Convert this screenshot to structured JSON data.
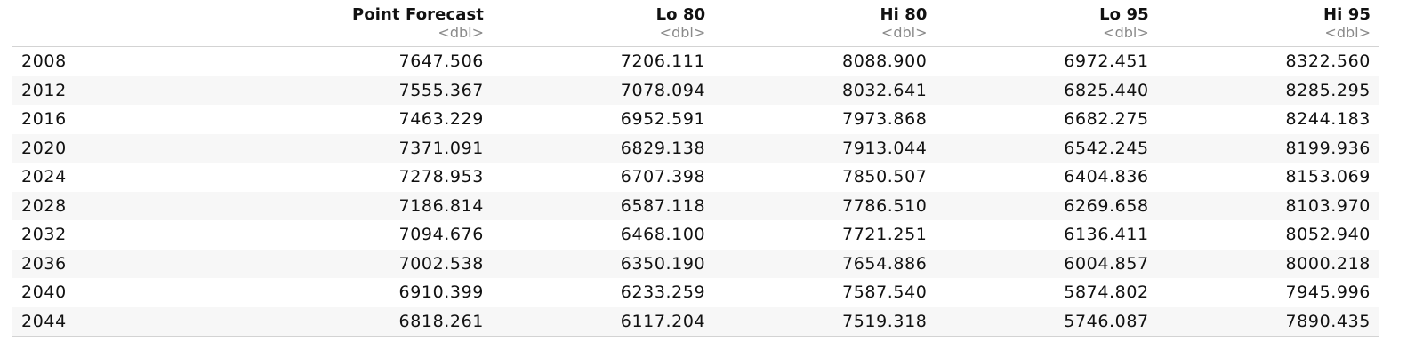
{
  "table": {
    "columns": [
      {
        "name": "",
        "type": ""
      },
      {
        "name": "Point Forecast",
        "type": "<dbl>"
      },
      {
        "name": "Lo 80",
        "type": "<dbl>"
      },
      {
        "name": "Hi 80",
        "type": "<dbl>"
      },
      {
        "name": "Lo 95",
        "type": "<dbl>"
      },
      {
        "name": "Hi 95",
        "type": "<dbl>"
      }
    ],
    "rows": [
      [
        "2008",
        "7647.506",
        "7206.111",
        "8088.900",
        "6972.451",
        "8322.560"
      ],
      [
        "2012",
        "7555.367",
        "7078.094",
        "8032.641",
        "6825.440",
        "8285.295"
      ],
      [
        "2016",
        "7463.229",
        "6952.591",
        "7973.868",
        "6682.275",
        "8244.183"
      ],
      [
        "2020",
        "7371.091",
        "6829.138",
        "7913.044",
        "6542.245",
        "8199.936"
      ],
      [
        "2024",
        "7278.953",
        "6707.398",
        "7850.507",
        "6404.836",
        "8153.069"
      ],
      [
        "2028",
        "7186.814",
        "6587.118",
        "7786.510",
        "6269.658",
        "8103.970"
      ],
      [
        "2032",
        "7094.676",
        "6468.100",
        "7721.251",
        "6136.411",
        "8052.940"
      ],
      [
        "2036",
        "7002.538",
        "6350.190",
        "7654.886",
        "6004.857",
        "8000.218"
      ],
      [
        "2040",
        "6910.399",
        "6233.259",
        "7587.540",
        "5874.802",
        "7945.996"
      ],
      [
        "2044",
        "6818.261",
        "6117.204",
        "7519.318",
        "5746.087",
        "7890.435"
      ]
    ]
  }
}
